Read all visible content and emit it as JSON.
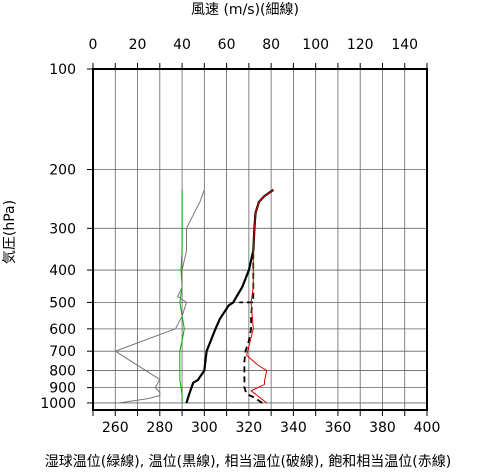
{
  "chart_data": {
    "type": "line",
    "title_top": "風速 (m/s)(細線)",
    "xlabel_bottom": "湿球温位(緑線), 温位(黒線), 相当温位(破線), 飽和相当温位(赤線)",
    "ylabel": "気圧(hPa)",
    "x_bottom": {
      "ticks": [
        260,
        280,
        300,
        320,
        340,
        360,
        380,
        400
      ],
      "range": [
        250,
        400
      ]
    },
    "x_top": {
      "ticks": [
        0,
        20,
        40,
        60,
        80,
        100,
        120,
        140
      ],
      "range": [
        0,
        150
      ]
    },
    "y": {
      "scale": "log",
      "reversed": true,
      "ticks": [
        100,
        200,
        300,
        400,
        500,
        600,
        700,
        800,
        900,
        1000
      ],
      "range": [
        100,
        1050
      ]
    },
    "grid": true,
    "series": [
      {
        "name": "湿球温位",
        "axis": "bottom",
        "color": "#00aa00",
        "style": "thin",
        "points": [
          [
            290,
            1000
          ],
          [
            290,
            950
          ],
          [
            289.5,
            900
          ],
          [
            289,
            850
          ],
          [
            289,
            800
          ],
          [
            289,
            750
          ],
          [
            289,
            700
          ],
          [
            290,
            650
          ],
          [
            291,
            600
          ],
          [
            290,
            550
          ],
          [
            289,
            500
          ],
          [
            290,
            450
          ],
          [
            289.5,
            400
          ],
          [
            290,
            350
          ],
          [
            290,
            300
          ],
          [
            290,
            250
          ],
          [
            290,
            230
          ]
        ]
      },
      {
        "name": "温位",
        "axis": "bottom",
        "color": "#000000",
        "style": "thick",
        "points": [
          [
            292,
            1000
          ],
          [
            293,
            950
          ],
          [
            295,
            870
          ],
          [
            297,
            855
          ],
          [
            300,
            800
          ],
          [
            301,
            700
          ],
          [
            305,
            600
          ],
          [
            307,
            560
          ],
          [
            311,
            510
          ],
          [
            313,
            500
          ],
          [
            314.5,
            480
          ],
          [
            317,
            450
          ],
          [
            320,
            400
          ],
          [
            322,
            350
          ],
          [
            322.5,
            300
          ],
          [
            323,
            270
          ],
          [
            324.5,
            250
          ],
          [
            327,
            240
          ],
          [
            331,
            230
          ]
        ]
      },
      {
        "name": "相当温位",
        "axis": "bottom",
        "color": "#000000",
        "style": "dashed",
        "points": [
          [
            326,
            1000
          ],
          [
            322,
            960
          ],
          [
            319,
            940
          ],
          [
            318,
            900
          ],
          [
            318,
            850
          ],
          [
            318,
            800
          ],
          [
            318,
            750
          ],
          [
            318.5,
            700
          ],
          [
            320,
            650
          ],
          [
            321,
            600
          ],
          [
            321,
            550
          ],
          [
            321.5,
            500
          ],
          [
            316,
            500
          ],
          [
            322,
            500
          ],
          [
            322,
            450
          ],
          [
            322,
            400
          ],
          [
            322,
            350
          ],
          [
            322.5,
            300
          ],
          [
            323,
            270
          ],
          [
            324.5,
            250
          ],
          [
            327,
            240
          ],
          [
            331,
            230
          ]
        ]
      },
      {
        "name": "飽和相当温位",
        "axis": "bottom",
        "color": "#dd0000",
        "style": "thin",
        "points": [
          [
            328,
            1000
          ],
          [
            321,
            920
          ],
          [
            327,
            880
          ],
          [
            327,
            860
          ],
          [
            328,
            800
          ],
          [
            324,
            770
          ],
          [
            319,
            720
          ],
          [
            322,
            600
          ],
          [
            321,
            500
          ],
          [
            322,
            450
          ],
          [
            322,
            400
          ],
          [
            322,
            350
          ],
          [
            322.5,
            300
          ],
          [
            323,
            270
          ],
          [
            324.5,
            250
          ],
          [
            327,
            240
          ],
          [
            331,
            230
          ]
        ]
      },
      {
        "name": "風速",
        "axis": "top",
        "color": "#777777",
        "style": "thin",
        "points": [
          [
            12,
            1000
          ],
          [
            25,
            970
          ],
          [
            30,
            950
          ],
          [
            30,
            930
          ],
          [
            28,
            900
          ],
          [
            30,
            850
          ],
          [
            10,
            700
          ],
          [
            37,
            600
          ],
          [
            40,
            550
          ],
          [
            42,
            500
          ],
          [
            38,
            480
          ],
          [
            40,
            450
          ],
          [
            40,
            400
          ],
          [
            42,
            350
          ],
          [
            42,
            300
          ],
          [
            48,
            250
          ],
          [
            50,
            230
          ]
        ]
      }
    ]
  }
}
